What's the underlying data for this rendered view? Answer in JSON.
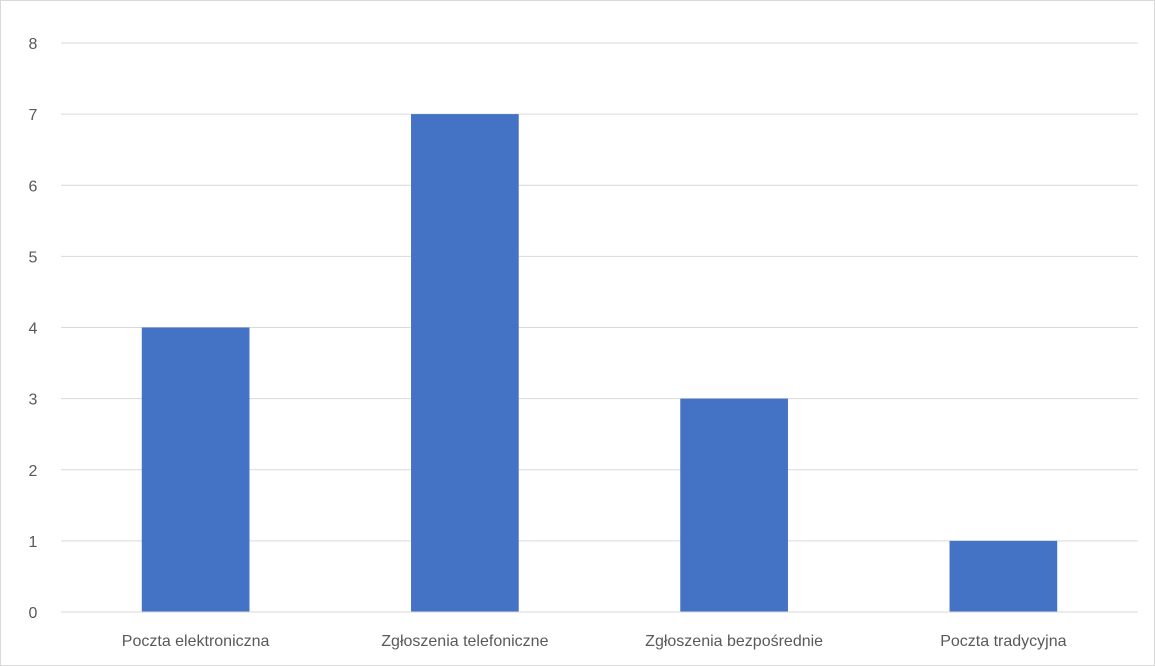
{
  "chart_data": {
    "type": "bar",
    "categories": [
      "Poczta elektroniczna",
      "Zgłoszenia telefoniczne",
      "Zgłoszenia bezpośrednie",
      "Poczta tradycyjna"
    ],
    "values": [
      4,
      7,
      3,
      1
    ],
    "title": "",
    "xlabel": "",
    "ylabel": "",
    "ylim": [
      0,
      8
    ],
    "yticks": [
      "0",
      "1",
      "2",
      "3",
      "4",
      "5",
      "6",
      "7",
      "8"
    ],
    "grid": true,
    "legend": "none",
    "bar_color": "#4472c4"
  }
}
